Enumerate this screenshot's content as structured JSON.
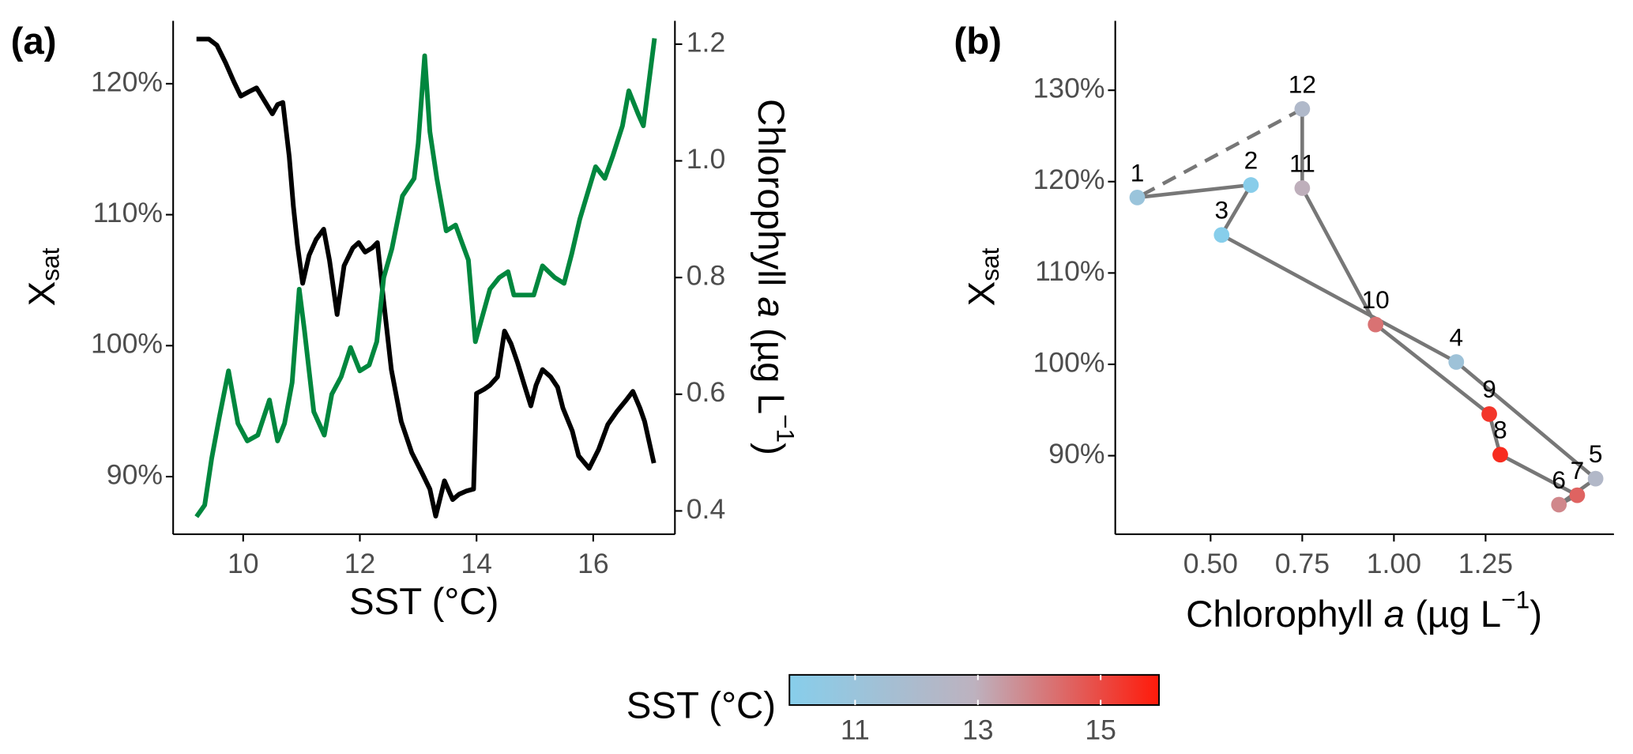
{
  "chart_data": [
    {
      "type": "line",
      "label": "(a)",
      "xlabel": "SST (°C)",
      "ylabel": {
        "base": "X",
        "sub": "sat"
      },
      "y2label": [
        "Chlorophyll ",
        "a",
        " (µg L",
        "−1",
        ")"
      ],
      "xlim": [
        8.8,
        17.4
      ],
      "xticks": [
        10,
        12,
        14,
        16
      ],
      "ylim": [
        85.6,
        124.8
      ],
      "yticks": [
        {
          "value": 90,
          "label": "90%"
        },
        {
          "value": 100,
          "label": "100%"
        },
        {
          "value": 110,
          "label": "110%"
        },
        {
          "value": 120,
          "label": "120%"
        }
      ],
      "y2lim": [
        0.36,
        1.24
      ],
      "y2ticks": [
        0.4,
        0.6,
        0.8,
        {
          "value": 1,
          "label": "1.0"
        },
        1.2
      ],
      "series": [
        {
          "color": "#000000",
          "x": [
            9.2,
            9.41,
            9.55,
            9.7,
            9.84,
            9.96,
            10.09,
            10.23,
            10.36,
            10.5,
            10.59,
            10.68,
            10.79,
            10.86,
            10.93,
            11.02,
            11.13,
            11.25,
            11.38,
            11.48,
            11.61,
            11.73,
            11.88,
            11.98,
            12.09,
            12.21,
            12.3,
            12.41,
            12.54,
            12.71,
            12.89,
            13.07,
            13.2,
            13.3,
            13.45,
            13.59,
            13.7,
            13.82,
            13.95,
            14.0,
            14.13,
            14.23,
            14.36,
            14.48,
            14.59,
            14.7,
            14.82,
            14.93,
            15.02,
            15.13,
            15.27,
            15.39,
            15.48,
            15.64,
            15.75,
            15.93,
            16.09,
            16.25,
            16.41,
            16.57,
            16.68,
            16.8,
            16.88,
            17.04
          ],
          "values": [
            123.41,
            123.41,
            122.94,
            121.59,
            120.16,
            119.05,
            119.37,
            119.68,
            118.73,
            117.7,
            118.41,
            118.57,
            114.44,
            110.63,
            107.7,
            104.76,
            106.9,
            108.1,
            108.89,
            106.51,
            102.38,
            106.11,
            107.46,
            107.86,
            107.14,
            107.46,
            107.86,
            103.33,
            98.17,
            94.21,
            91.83,
            90.24,
            89.05,
            86.98,
            89.68,
            88.25,
            88.65,
            88.89,
            89.05,
            96.35,
            96.67,
            96.98,
            97.62,
            101.11,
            100.16,
            98.73,
            96.98,
            95.4,
            96.98,
            98.17,
            97.62,
            96.83,
            95.24,
            93.49,
            91.59,
            90.63,
            92.06,
            93.97,
            95.0,
            95.87,
            96.51,
            95.24,
            94.21,
            91.03
          ]
        },
        {
          "color": "#00873e",
          "axis": "y2",
          "x": [
            9.2,
            9.34,
            9.46,
            9.59,
            9.75,
            9.91,
            10.07,
            10.25,
            10.45,
            10.59,
            10.71,
            10.84,
            10.96,
            11.05,
            11.21,
            11.39,
            11.52,
            11.68,
            11.84,
            12.0,
            12.16,
            12.29,
            12.41,
            12.55,
            12.73,
            12.93,
            13.0,
            13.11,
            13.2,
            13.32,
            13.48,
            13.64,
            13.75,
            13.86,
            13.98,
            14.09,
            14.23,
            14.39,
            14.54,
            14.64,
            14.82,
            14.98,
            15.13,
            15.34,
            15.5,
            15.63,
            15.77,
            15.95,
            16.04,
            16.2,
            16.34,
            16.5,
            16.61,
            16.77,
            16.86,
            17.05
          ],
          "values": [
            0.39,
            0.41,
            0.49,
            0.56,
            0.64,
            0.55,
            0.52,
            0.53,
            0.59,
            0.52,
            0.55,
            0.62,
            0.78,
            0.71,
            0.57,
            0.53,
            0.6,
            0.63,
            0.68,
            0.64,
            0.65,
            0.69,
            0.8,
            0.85,
            0.94,
            0.97,
            1.03,
            1.18,
            1.05,
            0.97,
            0.88,
            0.89,
            0.86,
            0.83,
            0.69,
            0.73,
            0.78,
            0.8,
            0.81,
            0.77,
            0.77,
            0.77,
            0.82,
            0.8,
            0.79,
            0.84,
            0.9,
            0.96,
            0.99,
            0.97,
            1.01,
            1.06,
            1.12,
            1.08,
            1.06,
            1.21
          ]
        }
      ]
    },
    {
      "type": "scatter",
      "label": "(b)",
      "xlabel": [
        "Chlorophyll ",
        "a",
        " (µg L",
        "−1",
        ")"
      ],
      "ylabel": {
        "base": "X",
        "sub": "sat"
      },
      "xlim": [
        0.24,
        1.6
      ],
      "xticks": [
        {
          "value": 0.5,
          "label": "0.50"
        },
        {
          "value": 0.75,
          "label": "0.75"
        },
        {
          "value": 1,
          "label": "1.00"
        },
        {
          "value": 1.25,
          "label": "1.25"
        }
      ],
      "ylim": [
        81.4,
        137.6
      ],
      "yticks": [
        {
          "value": 90,
          "label": "90%"
        },
        {
          "value": 100,
          "label": "100%"
        },
        {
          "value": 110,
          "label": "110%"
        },
        {
          "value": 120,
          "label": "120%"
        },
        {
          "value": 130,
          "label": "130%"
        }
      ],
      "categories": [
        "1",
        "2",
        "3",
        "4",
        "5",
        "6",
        "7",
        "8",
        "9",
        "10",
        "11",
        "12"
      ],
      "x": [
        0.3,
        0.61,
        0.53,
        1.17,
        1.55,
        1.45,
        1.5,
        1.29,
        1.26,
        0.95,
        0.75,
        0.75
      ],
      "values": [
        118.26,
        119.63,
        114.16,
        100.26,
        87.49,
        84.64,
        85.67,
        90.11,
        94.56,
        104.36,
        119.29,
        127.95
      ],
      "color_values": [
        11.0,
        10.0,
        9.95,
        11.2,
        12.3,
        13.8,
        14.5,
        15.6,
        15.4,
        14.2,
        13.0,
        12.2
      ],
      "line_color": "#777777",
      "colorbar": {
        "title": "SST (°C)",
        "lim": [
          9.93,
          15.95
        ],
        "ticks": [
          11,
          13,
          15
        ],
        "colors": [
          "#87ceeb",
          "#bdb2bf",
          "#ff1a0a"
        ]
      }
    }
  ]
}
